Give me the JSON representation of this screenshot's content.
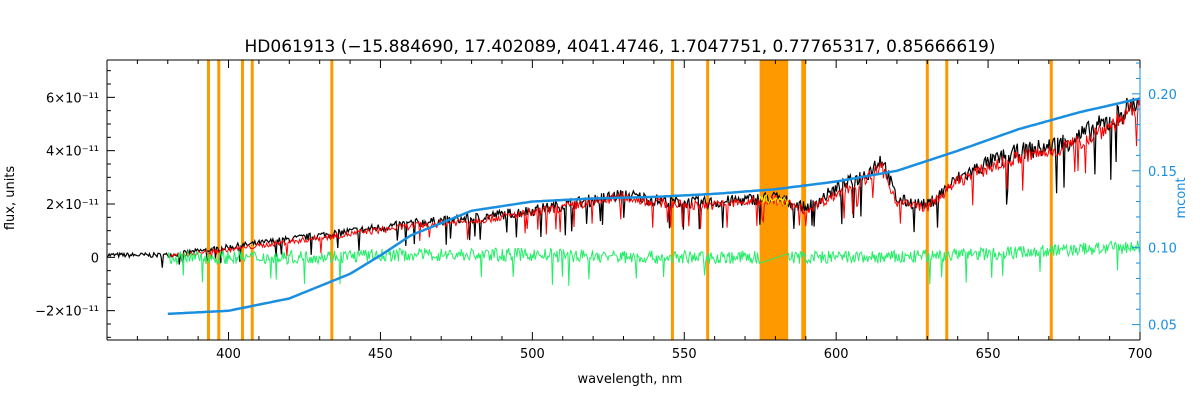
{
  "chart_data": {
    "type": "line",
    "title": "HD061913    (−15.884690, 17.402089, 4041.4746, 1.7047751, 0.77765317, 0.85666619)",
    "xlabel": "wavelength, nm",
    "ylabel": "flux, units",
    "ylabel_right": "mcont",
    "xlim": [
      360,
      700
    ],
    "ylim": [
      -3.1e-11,
      7.4e-11
    ],
    "ylim_right": [
      0.04,
      0.222
    ],
    "x_ticks": [
      400,
      450,
      500,
      550,
      600,
      650,
      700
    ],
    "y_ticks": [
      {
        "value": -2e-11,
        "label": "−2×10⁻¹¹"
      },
      {
        "value": 0,
        "label": "0"
      },
      {
        "value": 2e-11,
        "label": "2×10⁻¹¹"
      },
      {
        "value": 4e-11,
        "label": "4×10⁻¹¹"
      },
      {
        "value": 6e-11,
        "label": "6×10⁻¹¹"
      }
    ],
    "y_ticks_right": [
      0.05,
      0.1,
      0.15,
      0.2
    ],
    "colors": {
      "observed": "#000000",
      "model": "#ff0000",
      "residual": "#22ee66",
      "continuum": "#1a8fe0",
      "masked": "#ff9900",
      "masked_fit": "#ffee00",
      "right_axis": "#1a8fe0"
    },
    "mask_lines": [
      393.4,
      396.8,
      404.6,
      407.8,
      434.0,
      546.1,
      557.7,
      589.0,
      589.6,
      630.0,
      636.4,
      670.8
    ],
    "mask_band": [
      574.8,
      584.2
    ],
    "series": [
      {
        "role": "observed",
        "x": [
          360,
          380,
          400,
          420,
          440,
          460,
          480,
          500,
          510,
          520,
          530,
          540,
          550,
          560,
          570,
          580,
          590,
          600,
          610,
          615,
          620,
          630,
          640,
          650,
          660,
          670,
          680,
          690,
          700
        ],
        "values": [
          1e-12,
          1e-12,
          4e-12,
          7e-12,
          1e-11,
          1.3e-11,
          1.5e-11,
          1.8e-11,
          2e-11,
          2.2e-11,
          2.4e-11,
          2.2e-11,
          2.1e-11,
          2.1e-11,
          2.2e-11,
          2.3e-11,
          1.9e-11,
          2.6e-11,
          3.2e-11,
          3.8e-11,
          2.2e-11,
          2e-11,
          3e-11,
          3.6e-11,
          4e-11,
          4.2e-11,
          4.6e-11,
          5.2e-11,
          6e-11
        ]
      },
      {
        "role": "model",
        "x": [
          380,
          400,
          420,
          440,
          460,
          480,
          500,
          510,
          520,
          530,
          540,
          550,
          560,
          570,
          580,
          590,
          600,
          610,
          615,
          620,
          630,
          640,
          650,
          660,
          670,
          680,
          690,
          700
        ],
        "values": [
          5e-13,
          3e-12,
          6e-12,
          9e-12,
          1.2e-11,
          1.4e-11,
          1.7e-11,
          1.9e-11,
          2.1e-11,
          2.3e-11,
          2.1e-11,
          2e-11,
          2e-11,
          2.1e-11,
          2.2e-11,
          1.8e-11,
          2.4e-11,
          3e-11,
          3.4e-11,
          2.1e-11,
          1.9e-11,
          2.9e-11,
          3.4e-11,
          3.8e-11,
          4e-11,
          4.4e-11,
          5e-11,
          5.7e-11
        ]
      },
      {
        "role": "residual",
        "x": [
          380,
          420,
          460,
          500,
          540,
          580,
          620,
          660,
          700
        ],
        "values": [
          0.0,
          0.0,
          1e-12,
          1e-12,
          0.0,
          0.0,
          0.0,
          2e-12,
          4e-12
        ]
      },
      {
        "role": "continuum",
        "axis": "right",
        "x": [
          380,
          400,
          420,
          440,
          450,
          460,
          480,
          500,
          520,
          540,
          560,
          580,
          600,
          620,
          640,
          660,
          680,
          700
        ],
        "values": [
          0.057,
          0.059,
          0.067,
          0.083,
          0.095,
          0.108,
          0.124,
          0.13,
          0.132,
          0.133,
          0.135,
          0.138,
          0.143,
          0.15,
          0.163,
          0.177,
          0.188,
          0.197
        ]
      }
    ]
  }
}
